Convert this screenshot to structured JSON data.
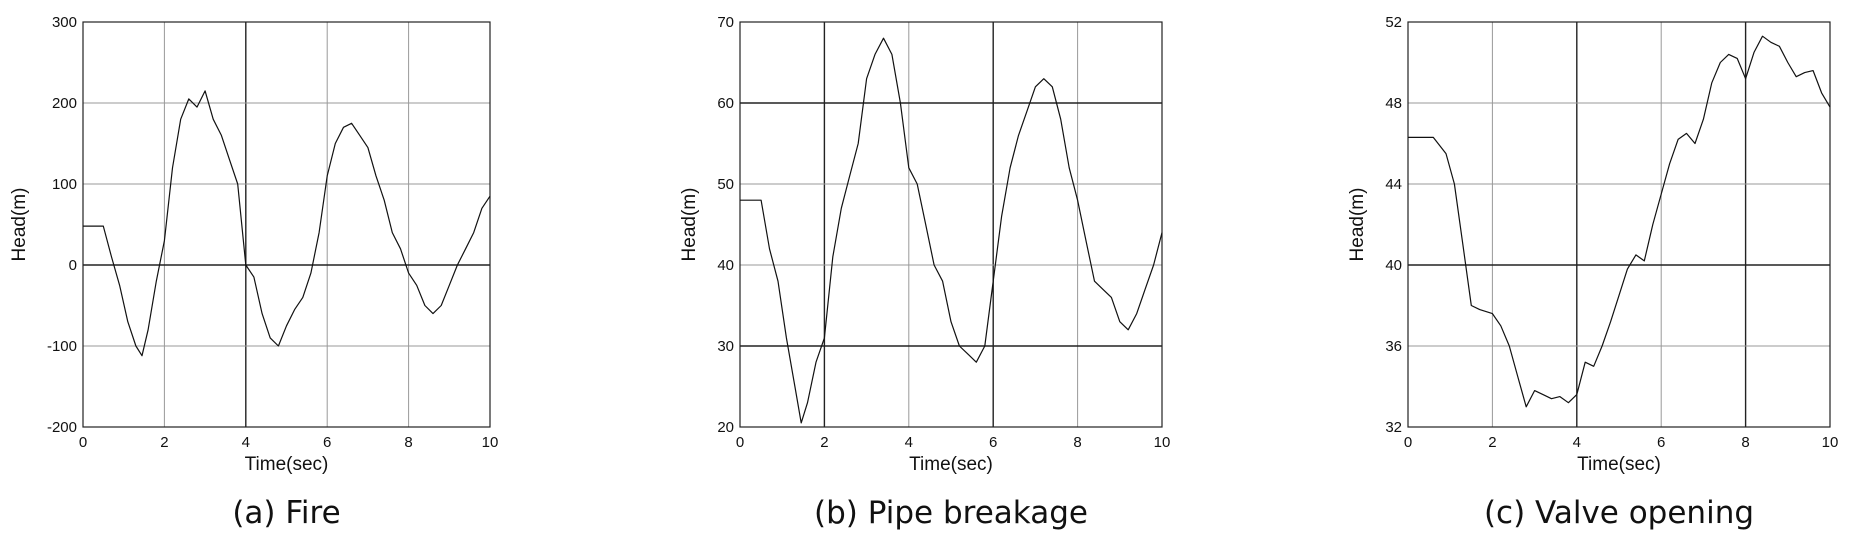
{
  "chart_data": [
    {
      "type": "line",
      "caption": "(a) Fire",
      "xlabel": "Time(sec)",
      "ylabel": "Head(m)",
      "xlim": [
        0,
        10
      ],
      "ylim": [
        -200,
        300
      ],
      "xticks": [
        "0",
        "2",
        "4",
        "6",
        "8",
        "10"
      ],
      "yticks": [
        "-200",
        "-100",
        "0",
        "100",
        "200",
        "300"
      ],
      "grid": true,
      "series": [
        {
          "name": "Head",
          "x": [
            0,
            0.5,
            0.7,
            0.9,
            1.1,
            1.3,
            1.45,
            1.6,
            1.8,
            2.0,
            2.2,
            2.4,
            2.6,
            2.8,
            3.0,
            3.2,
            3.4,
            3.6,
            3.8,
            4.0,
            4.2,
            4.4,
            4.6,
            4.8,
            5.0,
            5.2,
            5.4,
            5.6,
            5.8,
            6.0,
            6.2,
            6.4,
            6.6,
            6.8,
            7.0,
            7.2,
            7.4,
            7.6,
            7.8,
            8.0,
            8.2,
            8.4,
            8.6,
            8.8,
            9.0,
            9.2,
            9.4,
            9.6,
            9.8,
            10.0
          ],
          "y": [
            48,
            48,
            10,
            -25,
            -70,
            -100,
            -112,
            -80,
            -20,
            30,
            120,
            180,
            205,
            195,
            215,
            180,
            160,
            130,
            100,
            0,
            -15,
            -60,
            -90,
            -100,
            -75,
            -55,
            -40,
            -10,
            40,
            110,
            150,
            170,
            175,
            160,
            145,
            110,
            80,
            40,
            20,
            -10,
            -25,
            -50,
            -60,
            -50,
            -25,
            0,
            20,
            40,
            70,
            85
          ]
        }
      ]
    },
    {
      "type": "line",
      "caption": "(b) Pipe breakage",
      "xlabel": "Time(sec)",
      "ylabel": "Head(m)",
      "xlim": [
        0,
        10
      ],
      "ylim": [
        20,
        70
      ],
      "xticks": [
        "0",
        "2",
        "4",
        "6",
        "8",
        "10"
      ],
      "yticks": [
        "20",
        "30",
        "40",
        "50",
        "60",
        "70"
      ],
      "grid": true,
      "series": [
        {
          "name": "Head",
          "x": [
            0,
            0.5,
            0.7,
            0.9,
            1.1,
            1.3,
            1.45,
            1.6,
            1.8,
            2.0,
            2.2,
            2.4,
            2.6,
            2.8,
            3.0,
            3.2,
            3.4,
            3.6,
            3.8,
            4.0,
            4.2,
            4.4,
            4.6,
            4.8,
            5.0,
            5.2,
            5.4,
            5.6,
            5.8,
            6.0,
            6.2,
            6.4,
            6.6,
            6.8,
            7.0,
            7.2,
            7.4,
            7.6,
            7.8,
            8.0,
            8.2,
            8.4,
            8.6,
            8.8,
            9.0,
            9.2,
            9.4,
            9.6,
            9.8,
            10.0
          ],
          "y": [
            48,
            48,
            42,
            38,
            31,
            25,
            20.5,
            23,
            28,
            31,
            41,
            47,
            51,
            55,
            63,
            66,
            68,
            66,
            60,
            52,
            50,
            45,
            40,
            38,
            33,
            30,
            29,
            28,
            30,
            38,
            46,
            52,
            56,
            59,
            62,
            63,
            62,
            58,
            52,
            48,
            43,
            38,
            37,
            36,
            33,
            32,
            34,
            37,
            40,
            44
          ]
        }
      ]
    },
    {
      "type": "line",
      "caption": "(c) Valve opening",
      "xlabel": "Time(sec)",
      "ylabel": "Head(m)",
      "xlim": [
        0,
        10
      ],
      "ylim": [
        32,
        52
      ],
      "xticks": [
        "0",
        "2",
        "4",
        "6",
        "8",
        "10"
      ],
      "yticks": [
        "32",
        "36",
        "40",
        "44",
        "48",
        "52"
      ],
      "grid": true,
      "series": [
        {
          "name": "Head",
          "x": [
            0,
            0.6,
            0.9,
            1.1,
            1.3,
            1.5,
            1.7,
            2.0,
            2.2,
            2.4,
            2.6,
            2.8,
            3.0,
            3.2,
            3.4,
            3.6,
            3.8,
            4.0,
            4.2,
            4.4,
            4.6,
            4.8,
            5.0,
            5.2,
            5.4,
            5.6,
            5.8,
            6.0,
            6.2,
            6.4,
            6.6,
            6.8,
            7.0,
            7.2,
            7.4,
            7.6,
            7.8,
            8.0,
            8.2,
            8.4,
            8.6,
            8.8,
            9.0,
            9.2,
            9.4,
            9.6,
            9.8,
            10.0
          ],
          "y": [
            46.3,
            46.3,
            45.5,
            44,
            41,
            38,
            37.8,
            37.6,
            37,
            36,
            34.5,
            33,
            33.8,
            33.6,
            33.4,
            33.5,
            33.2,
            33.6,
            35.2,
            35,
            36,
            37.2,
            38.5,
            39.8,
            40.5,
            40.2,
            42,
            43.5,
            45,
            46.2,
            46.5,
            46,
            47.2,
            49,
            50,
            50.4,
            50.2,
            49.2,
            50.5,
            51.3,
            51,
            50.8,
            50,
            49.3,
            49.5,
            49.6,
            48.5,
            47.8
          ]
        }
      ]
    }
  ]
}
